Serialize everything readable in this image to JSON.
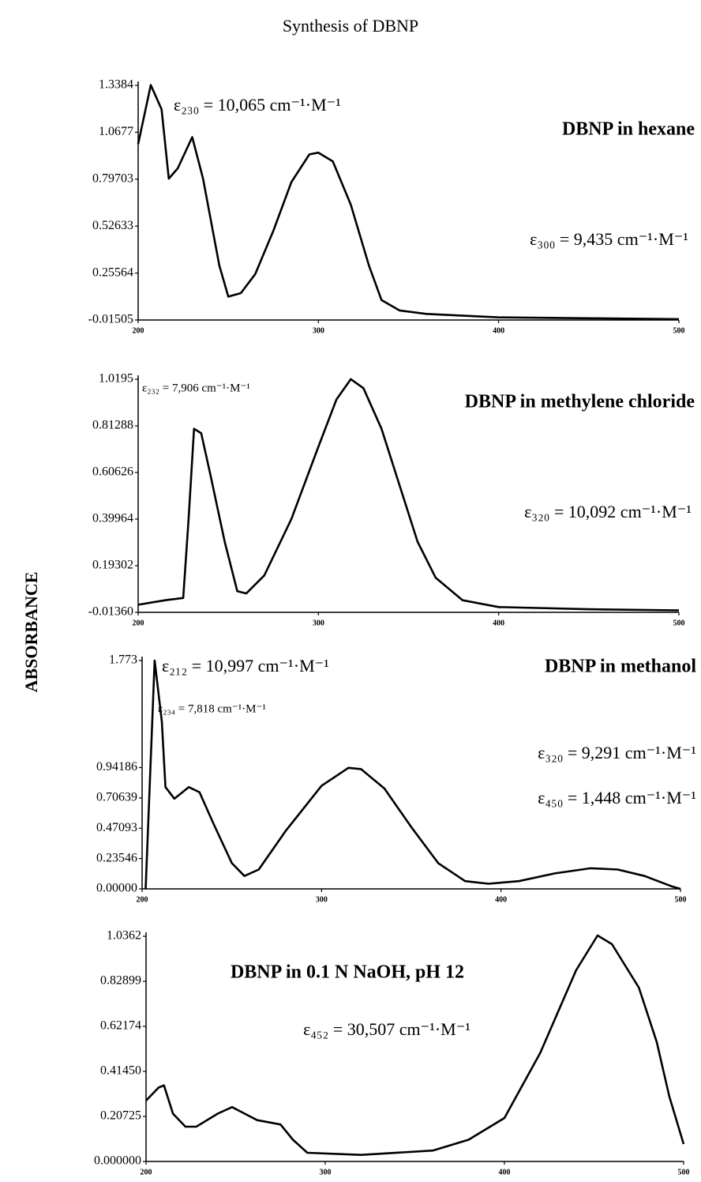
{
  "title": "Synthesis of DBNP",
  "ylabel": "ABSORBANCE",
  "chart_data": [
    {
      "type": "line",
      "title": "DBNP in hexane",
      "annotations": [
        "ε₂₃₀ = 10,065 cm⁻¹·M⁻¹",
        "ε₃₀₀ = 9,435 cm⁻¹·M⁻¹"
      ],
      "x": [
        200,
        207,
        213,
        217,
        222,
        230,
        236,
        245,
        250,
        257,
        265,
        275,
        285,
        295,
        300,
        308,
        318,
        328,
        335,
        345,
        360,
        400,
        450,
        500
      ],
      "values": [
        1.0,
        1.34,
        1.2,
        0.8,
        0.86,
        1.04,
        0.8,
        0.3,
        0.12,
        0.14,
        0.25,
        0.5,
        0.78,
        0.94,
        0.95,
        0.9,
        0.65,
        0.3,
        0.1,
        0.04,
        0.02,
        0.0,
        -0.005,
        -0.01
      ],
      "color": "#000000",
      "xlim": [
        200,
        500
      ],
      "xticks": [
        200,
        300,
        400,
        500
      ],
      "ylim": [
        -0.01505,
        1.3384
      ],
      "yticks": [
        -0.01505,
        0.25564,
        0.52633,
        0.79703,
        1.0677,
        1.3384
      ]
    },
    {
      "type": "line",
      "title": "DBNP in methylene chloride",
      "annotations": [
        "ε₂₃₂ = 7,906 cm⁻¹·M⁻¹",
        "ε₃₂₀ = 10,092 cm⁻¹·M⁻¹"
      ],
      "x": [
        200,
        215,
        225,
        228,
        231,
        235,
        240,
        248,
        255,
        260,
        270,
        285,
        300,
        310,
        318,
        325,
        335,
        345,
        355,
        365,
        380,
        400,
        450,
        500
      ],
      "values": [
        0.02,
        0.04,
        0.05,
        0.4,
        0.8,
        0.78,
        0.6,
        0.3,
        0.08,
        0.07,
        0.15,
        0.4,
        0.72,
        0.93,
        1.02,
        0.98,
        0.8,
        0.55,
        0.3,
        0.14,
        0.04,
        0.01,
        0.0,
        -0.005
      ],
      "color": "#000000",
      "xlim": [
        200,
        500
      ],
      "xticks": [
        200,
        300,
        400,
        500
      ],
      "ylim": [
        -0.0136,
        1.0195
      ],
      "yticks": [
        {
          "value": -0.0136,
          "label": "-0.01360"
        },
        0.19302,
        0.39964,
        0.60626,
        0.81288,
        1.0195
      ]
    },
    {
      "type": "line",
      "title": "DBNP in methanol",
      "annotations": [
        "ε₂₁₂ = 10,997 cm⁻¹·M⁻¹",
        "ε₂₃₄ = 7,818 cm⁻¹·M⁻¹",
        "ε₃₂₀ = 9,291 cm⁻¹·M⁻¹",
        "ε₄₅₀ = 1,448 cm⁻¹·M⁻¹"
      ],
      "x": [
        202,
        207,
        211,
        213,
        218,
        226,
        232,
        240,
        250,
        257,
        265,
        280,
        300,
        315,
        322,
        335,
        350,
        365,
        380,
        393,
        410,
        430,
        450,
        465,
        480,
        495,
        500
      ],
      "values": [
        0.0,
        1.773,
        1.3,
        0.79,
        0.7,
        0.79,
        0.75,
        0.5,
        0.2,
        0.1,
        0.15,
        0.45,
        0.8,
        0.94,
        0.93,
        0.78,
        0.48,
        0.2,
        0.06,
        0.04,
        0.06,
        0.12,
        0.16,
        0.15,
        0.1,
        0.02,
        0.0
      ],
      "color": "#000000",
      "xlim": [
        200,
        500
      ],
      "xticks": [
        200,
        300,
        400,
        500
      ],
      "ylim": [
        0,
        1.773
      ],
      "yticks": [
        {
          "value": 0,
          "label": "0.00000"
        },
        0.23546,
        0.47093,
        0.70639,
        0.94186,
        1.773
      ]
    },
    {
      "type": "line",
      "title": "DBNP in 0.1 N NaOH, pH 12",
      "annotations": [
        "ε₄₅₂ = 30,507 cm⁻¹·M⁻¹"
      ],
      "x": [
        200,
        207,
        210,
        215,
        222,
        228,
        240,
        248,
        255,
        262,
        275,
        282,
        290,
        320,
        360,
        380,
        400,
        420,
        440,
        452,
        460,
        475,
        485,
        492,
        500
      ],
      "values": [
        0.28,
        0.34,
        0.35,
        0.22,
        0.16,
        0.16,
        0.22,
        0.25,
        0.22,
        0.19,
        0.17,
        0.1,
        0.04,
        0.03,
        0.05,
        0.1,
        0.2,
        0.5,
        0.88,
        1.04,
        1.0,
        0.8,
        0.55,
        0.3,
        0.08
      ],
      "color": "#000000",
      "xlim": [
        200,
        500
      ],
      "xticks": [
        200,
        300,
        400,
        500
      ],
      "ylim": [
        0,
        1.0362
      ],
      "yticks": [
        {
          "value": 0,
          "label": "0.000000"
        },
        {
          "value": 0.20725,
          "label": "0.20725"
        },
        {
          "value": 0.4145,
          "label": "0.41450"
        },
        0.62174,
        0.82899,
        1.0362
      ]
    }
  ]
}
